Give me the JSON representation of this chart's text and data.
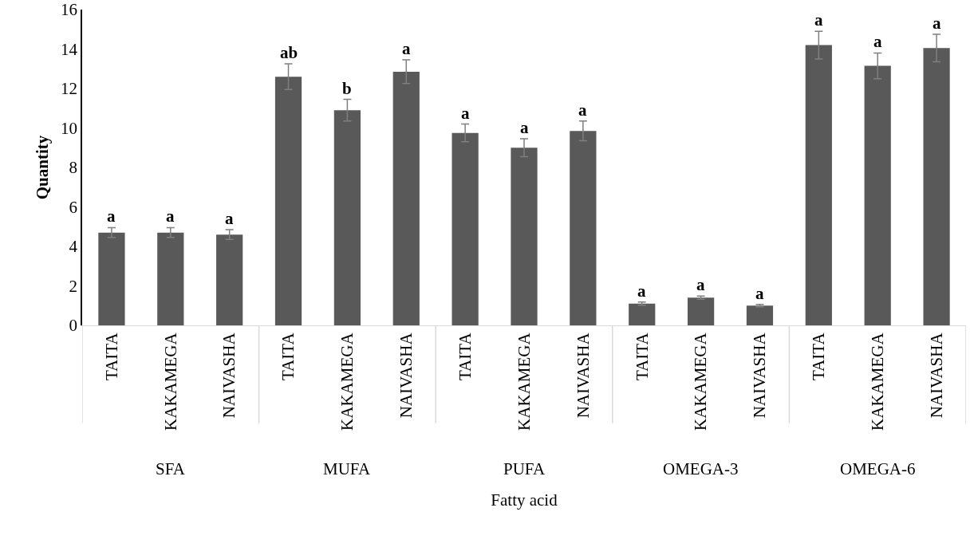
{
  "chart_data": {
    "type": "bar",
    "xlabel": "Fatty acid",
    "ylabel": "Quantity",
    "categories": [
      "TAITA",
      "KAKAMEGA",
      "NAIVASHA",
      "TAITA",
      "KAKAMEGA",
      "NAIVASHA",
      "TAITA",
      "KAKAMEGA",
      "NAIVASHA",
      "TAITA",
      "KAKAMEGA",
      "NAIVASHA",
      "TAITA",
      "KAKAMEGA",
      "NAIVASHA"
    ],
    "color": "#595959",
    "values": [
      4.7,
      4.7,
      4.6,
      12.6,
      10.9,
      12.85,
      9.75,
      9.0,
      9.85,
      1.1,
      1.4,
      1.0,
      14.2,
      13.15,
      14.05
    ],
    "errors": [
      0.25,
      0.25,
      0.25,
      0.65,
      0.55,
      0.6,
      0.45,
      0.45,
      0.5,
      0.08,
      0.08,
      0.06,
      0.7,
      0.65,
      0.7
    ],
    "value_labels": [
      "a",
      "a",
      "a",
      "ab",
      "b",
      "a",
      "a",
      "a",
      "a",
      "a",
      "a",
      "a",
      "a",
      "a",
      "a"
    ],
    "annotations": [
      "SFA",
      "MUFA",
      "PUFA",
      "OMEGA-3",
      "OMEGA-6"
    ],
    "ylim": [
      0,
      16
    ],
    "yticks": [
      0,
      2,
      4,
      6,
      8,
      10,
      12,
      14,
      16
    ],
    "grid": false,
    "legend": false
  }
}
